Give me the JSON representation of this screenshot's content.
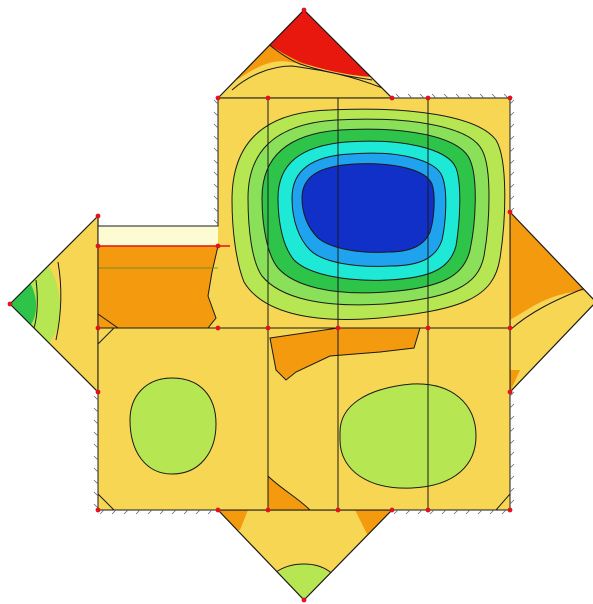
{
  "diagram": {
    "kind": "finite-element contour plot (plate with triangular flaps)",
    "colors": {
      "red": "#e8180f",
      "orange": "#f39a0f",
      "yellow": "#f7d654",
      "light_green": "#b6e651",
      "green_light2": "#8be05a",
      "green": "#2ec44a",
      "cyan": "#1ee8d6",
      "light_blue": "#1fa3ef",
      "blue": "#1030c8",
      "pale_yellow": "#fdfbd2",
      "mesh_line": "#1a1a1a",
      "node": "#e0141e"
    }
  }
}
